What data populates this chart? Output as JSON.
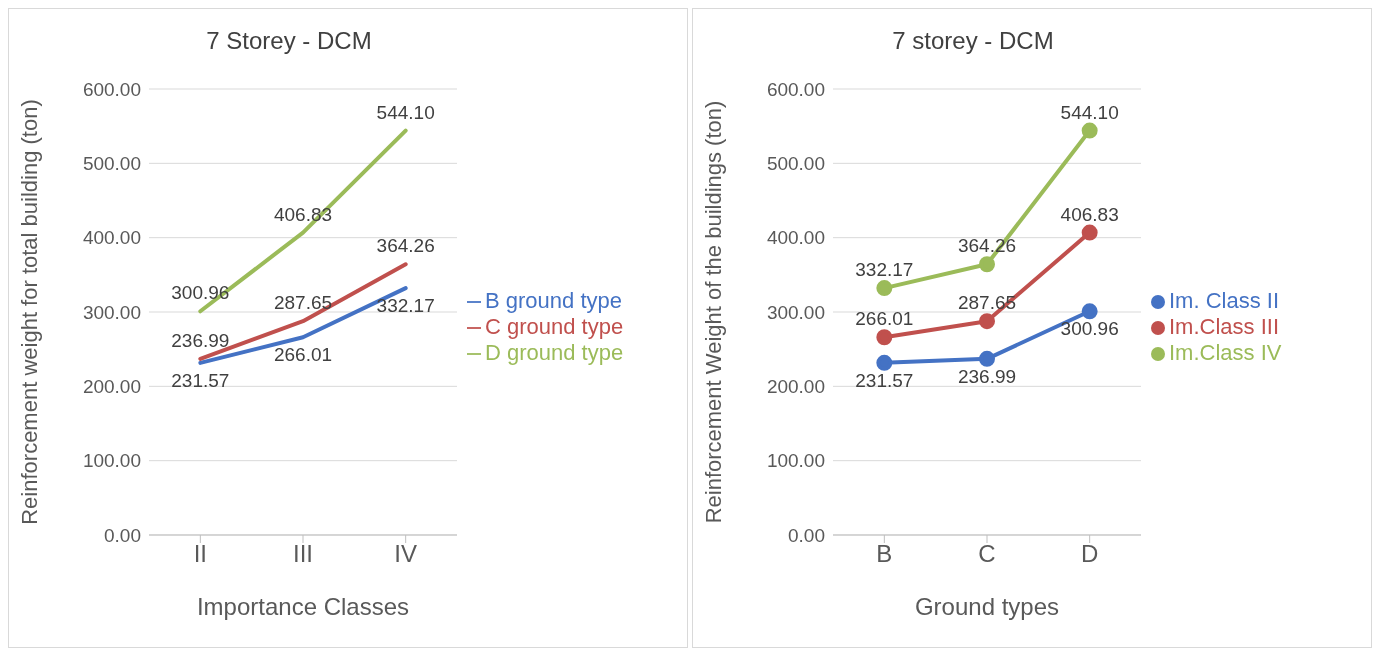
{
  "chart_data": [
    {
      "type": "line",
      "title": "7 Storey - DCM",
      "xlabel": "Importance Classes",
      "ylabel": "Reinforcement weight for total building (ton)",
      "categories": [
        "II",
        "III",
        "IV"
      ],
      "series": [
        {
          "name": "B ground type",
          "color": "#4472c4",
          "values": [
            231.57,
            266.01,
            332.17
          ],
          "value_labels": [
            "231.57",
            "266.01",
            "332.17"
          ]
        },
        {
          "name": "C ground type",
          "color": "#c0504d",
          "values": [
            236.99,
            287.65,
            364.26
          ],
          "value_labels": [
            "236.99",
            "287.65",
            "364.26"
          ]
        },
        {
          "name": "D ground type",
          "color": "#9bbb59",
          "values": [
            300.96,
            406.83,
            544.1
          ],
          "value_labels": [
            "300.96",
            "406.83",
            "544.10"
          ]
        }
      ],
      "ylim": [
        0,
        600
      ],
      "yticks": [
        {
          "value": 0,
          "label": "0.00"
        },
        {
          "value": 100,
          "label": "100.00"
        },
        {
          "value": 200,
          "label": "200.00"
        },
        {
          "value": 300,
          "label": "300.00"
        },
        {
          "value": 400,
          "label": "400.00"
        },
        {
          "value": 500,
          "label": "500.00"
        },
        {
          "value": 600,
          "label": "600.00"
        }
      ],
      "grid": "y",
      "legend": "right",
      "marker": "none"
    },
    {
      "type": "line",
      "title": "7 storey - DCM",
      "xlabel": "Ground types",
      "ylabel": "Reinforcement Weight of the buildings (ton)",
      "categories": [
        "B",
        "C",
        "D"
      ],
      "series": [
        {
          "name": "Im. Class II",
          "color": "#4472c4",
          "values": [
            231.57,
            236.99,
            300.96
          ],
          "value_labels": [
            "231.57",
            "236.99",
            "300.96"
          ]
        },
        {
          "name": "Im.Class III",
          "color": "#c0504d",
          "values": [
            266.01,
            287.65,
            406.83
          ],
          "value_labels": [
            "266.01",
            "287.65",
            "406.83"
          ]
        },
        {
          "name": "Im.Class IV",
          "color": "#9bbb59",
          "values": [
            332.17,
            364.26,
            544.1
          ],
          "value_labels": [
            "332.17",
            "364.26",
            "544.10"
          ]
        }
      ],
      "ylim": [
        0,
        600
      ],
      "yticks": [
        {
          "value": 0,
          "label": "0.00"
        },
        {
          "value": 100,
          "label": "100.00"
        },
        {
          "value": 200,
          "label": "200.00"
        },
        {
          "value": 300,
          "label": "300.00"
        },
        {
          "value": 400,
          "label": "400.00"
        },
        {
          "value": 500,
          "label": "500.00"
        },
        {
          "value": 600,
          "label": "600.00"
        }
      ],
      "grid": "y",
      "legend": "right",
      "marker": "circle"
    }
  ]
}
